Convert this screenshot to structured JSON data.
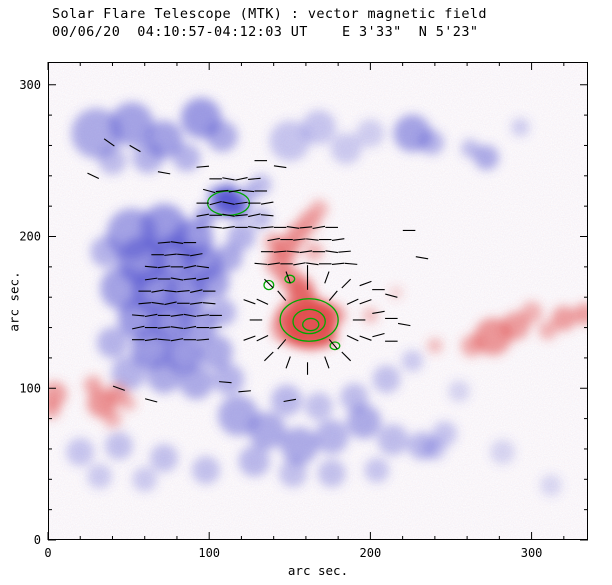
{
  "chart_data": {
    "type": "heatmap",
    "subtype": "solar vector magnetogram with overlaid vector field",
    "title": "Solar Flare Telescope (MTK) : vector magnetic field",
    "subtitle": "00/06/20  04:10:57-04:12:03 UT    E 3'33\"  N 5'23\"",
    "xlabel": "arc sec.",
    "ylabel": "arc sec.",
    "xlim": [
      0,
      335
    ],
    "ylim": [
      0,
      315
    ],
    "xticks": [
      0,
      100,
      200,
      300
    ],
    "yticks": [
      0,
      100,
      200,
      300
    ],
    "minor_tick": 20,
    "grid": false,
    "legend": "none",
    "vector_length": 8,
    "colors": {
      "positive": "#e04848",
      "negative": "#5050cf",
      "contour": "#00a800",
      "vector": "#000000",
      "frame": "#000000",
      "background": "#ffffff"
    },
    "blobs": {
      "negative": [
        [
          30,
          268,
          16,
          0.45
        ],
        [
          52,
          274,
          14,
          0.5
        ],
        [
          72,
          264,
          12,
          0.5
        ],
        [
          95,
          278,
          13,
          0.55
        ],
        [
          108,
          266,
          10,
          0.45
        ],
        [
          62,
          252,
          10,
          0.4
        ],
        [
          40,
          250,
          9,
          0.35
        ],
        [
          86,
          252,
          9,
          0.4
        ],
        [
          150,
          263,
          13,
          0.3
        ],
        [
          168,
          272,
          11,
          0.3
        ],
        [
          185,
          258,
          10,
          0.28
        ],
        [
          200,
          268,
          9,
          0.25
        ],
        [
          226,
          268,
          12,
          0.5
        ],
        [
          238,
          262,
          8,
          0.4
        ],
        [
          272,
          252,
          8,
          0.45
        ],
        [
          262,
          258,
          6,
          0.35
        ],
        [
          293,
          272,
          6,
          0.25
        ],
        [
          52,
          202,
          16,
          0.5
        ],
        [
          72,
          206,
          15,
          0.55
        ],
        [
          90,
          198,
          13,
          0.55
        ],
        [
          58,
          184,
          15,
          0.6
        ],
        [
          78,
          186,
          14,
          0.6
        ],
        [
          96,
          182,
          12,
          0.55
        ],
        [
          46,
          166,
          14,
          0.5
        ],
        [
          66,
          164,
          14,
          0.6
        ],
        [
          86,
          162,
          13,
          0.6
        ],
        [
          102,
          170,
          11,
          0.5
        ],
        [
          56,
          146,
          13,
          0.55
        ],
        [
          76,
          144,
          13,
          0.6
        ],
        [
          94,
          142,
          11,
          0.5
        ],
        [
          64,
          126,
          13,
          0.55
        ],
        [
          84,
          122,
          12,
          0.55
        ],
        [
          104,
          124,
          11,
          0.45
        ],
        [
          50,
          110,
          11,
          0.4
        ],
        [
          72,
          108,
          11,
          0.45
        ],
        [
          92,
          104,
          11,
          0.45
        ],
        [
          112,
          106,
          10,
          0.4
        ],
        [
          40,
          130,
          10,
          0.4
        ],
        [
          36,
          190,
          10,
          0.4
        ],
        [
          108,
          150,
          9,
          0.4
        ],
        [
          112,
          186,
          9,
          0.45
        ],
        [
          120,
          200,
          9,
          0.4
        ],
        [
          112,
          222,
          9,
          0.9
        ],
        [
          119,
          218,
          6,
          0.7
        ],
        [
          105,
          227,
          6,
          0.65
        ],
        [
          112,
          230,
          6,
          0.5
        ],
        [
          124,
          228,
          6,
          0.4
        ],
        [
          132,
          234,
          7,
          0.35
        ],
        [
          98,
          214,
          7,
          0.5
        ],
        [
          132,
          212,
          7,
          0.35
        ],
        [
          118,
          82,
          13,
          0.45
        ],
        [
          136,
          72,
          12,
          0.45
        ],
        [
          156,
          62,
          12,
          0.45
        ],
        [
          176,
          68,
          11,
          0.4
        ],
        [
          196,
          78,
          11,
          0.45
        ],
        [
          214,
          66,
          10,
          0.35
        ],
        [
          232,
          62,
          9,
          0.38
        ],
        [
          148,
          92,
          10,
          0.38
        ],
        [
          168,
          88,
          9,
          0.33
        ],
        [
          190,
          94,
          9,
          0.35
        ],
        [
          128,
          52,
          10,
          0.38
        ],
        [
          152,
          44,
          9,
          0.33
        ],
        [
          176,
          44,
          9,
          0.33
        ],
        [
          204,
          46,
          8,
          0.3
        ],
        [
          246,
          70,
          8,
          0.3
        ],
        [
          210,
          106,
          9,
          0.33
        ],
        [
          226,
          118,
          7,
          0.28
        ],
        [
          240,
          60,
          7,
          0.3
        ],
        [
          20,
          58,
          9,
          0.3
        ],
        [
          44,
          62,
          9,
          0.33
        ],
        [
          72,
          54,
          9,
          0.33
        ],
        [
          98,
          46,
          9,
          0.33
        ],
        [
          32,
          42,
          8,
          0.28
        ],
        [
          60,
          40,
          8,
          0.28
        ],
        [
          282,
          58,
          8,
          0.22
        ],
        [
          312,
          36,
          7,
          0.2
        ],
        [
          255,
          98,
          7,
          0.22
        ]
      ],
      "positive": [
        [
          163,
          142,
          16,
          0.85
        ],
        [
          170,
          149,
          9,
          0.7
        ],
        [
          155,
          136,
          9,
          0.65
        ],
        [
          158,
          158,
          10,
          0.6
        ],
        [
          150,
          148,
          9,
          0.6
        ],
        [
          172,
          135,
          8,
          0.6
        ],
        [
          178,
          148,
          7,
          0.5
        ],
        [
          148,
          140,
          10,
          0.55
        ],
        [
          150,
          172,
          8,
          0.55
        ],
        [
          157,
          166,
          8,
          0.6
        ],
        [
          143,
          182,
          8,
          0.55
        ],
        [
          148,
          192,
          8,
          0.6
        ],
        [
          155,
          202,
          7,
          0.55
        ],
        [
          162,
          210,
          7,
          0.5
        ],
        [
          168,
          218,
          6,
          0.4
        ],
        [
          140,
          196,
          6,
          0.45
        ],
        [
          165,
          190,
          6,
          0.4
        ],
        [
          200,
          148,
          5,
          0.35
        ],
        [
          216,
          163,
          4,
          0.25
        ],
        [
          4,
          96,
          8,
          0.5
        ],
        [
          2,
          86,
          6,
          0.45
        ],
        [
          33,
          90,
          9,
          0.55
        ],
        [
          43,
          96,
          7,
          0.5
        ],
        [
          28,
          102,
          6,
          0.45
        ],
        [
          40,
          80,
          6,
          0.4
        ],
        [
          50,
          90,
          5,
          0.35
        ],
        [
          276,
          134,
          12,
          0.55
        ],
        [
          290,
          141,
          9,
          0.5
        ],
        [
          263,
          128,
          7,
          0.45
        ],
        [
          300,
          150,
          7,
          0.4
        ],
        [
          320,
          146,
          8,
          0.5
        ],
        [
          333,
          149,
          7,
          0.5
        ],
        [
          240,
          128,
          5,
          0.35
        ],
        [
          310,
          138,
          6,
          0.4
        ]
      ]
    },
    "contours": [
      [
        112,
        222,
        13,
        8
      ],
      [
        162,
        145,
        18,
        14
      ],
      [
        162,
        144,
        10,
        8
      ],
      [
        163,
        142,
        5,
        4
      ],
      [
        137,
        168,
        3,
        3
      ],
      [
        150,
        172,
        3,
        2.5
      ],
      [
        178,
        128,
        3,
        2.5
      ]
    ],
    "vectors": [
      [
        96,
        206,
        5
      ],
      [
        104,
        206,
        -5
      ],
      [
        112,
        206,
        8
      ],
      [
        120,
        206,
        0
      ],
      [
        128,
        206,
        -8
      ],
      [
        136,
        206,
        5
      ],
      [
        96,
        214,
        10
      ],
      [
        104,
        214,
        0
      ],
      [
        112,
        214,
        -10
      ],
      [
        120,
        214,
        5
      ],
      [
        128,
        214,
        12
      ],
      [
        136,
        214,
        -5
      ],
      [
        96,
        222,
        0
      ],
      [
        104,
        222,
        15
      ],
      [
        112,
        222,
        -12
      ],
      [
        120,
        222,
        8
      ],
      [
        128,
        222,
        0
      ],
      [
        136,
        222,
        10
      ],
      [
        100,
        230,
        -15
      ],
      [
        108,
        230,
        5
      ],
      [
        116,
        230,
        10
      ],
      [
        124,
        230,
        -5
      ],
      [
        132,
        230,
        0
      ],
      [
        104,
        238,
        0
      ],
      [
        112,
        238,
        -10
      ],
      [
        120,
        238,
        12
      ],
      [
        128,
        238,
        5
      ],
      [
        56,
        132,
        0
      ],
      [
        64,
        132,
        8
      ],
      [
        72,
        132,
        -5
      ],
      [
        80,
        132,
        10
      ],
      [
        88,
        132,
        0
      ],
      [
        96,
        132,
        5
      ],
      [
        56,
        140,
        12
      ],
      [
        64,
        140,
        0
      ],
      [
        72,
        140,
        6
      ],
      [
        80,
        140,
        -8
      ],
      [
        88,
        140,
        10
      ],
      [
        96,
        140,
        0
      ],
      [
        104,
        140,
        5
      ],
      [
        56,
        148,
        -5
      ],
      [
        64,
        148,
        10
      ],
      [
        72,
        148,
        0
      ],
      [
        80,
        148,
        8
      ],
      [
        88,
        148,
        -10
      ],
      [
        96,
        148,
        6
      ],
      [
        104,
        148,
        0
      ],
      [
        60,
        156,
        5
      ],
      [
        68,
        156,
        -8
      ],
      [
        76,
        156,
        12
      ],
      [
        84,
        156,
        0
      ],
      [
        92,
        156,
        8
      ],
      [
        100,
        156,
        -5
      ],
      [
        60,
        164,
        0
      ],
      [
        68,
        164,
        10
      ],
      [
        76,
        164,
        -6
      ],
      [
        84,
        164,
        5
      ],
      [
        92,
        164,
        12
      ],
      [
        100,
        164,
        0
      ],
      [
        64,
        172,
        8
      ],
      [
        72,
        172,
        0
      ],
      [
        80,
        172,
        -10
      ],
      [
        88,
        172,
        6
      ],
      [
        96,
        172,
        10
      ],
      [
        64,
        180,
        -5
      ],
      [
        72,
        180,
        8
      ],
      [
        80,
        180,
        0
      ],
      [
        88,
        180,
        12
      ],
      [
        96,
        180,
        -8
      ],
      [
        68,
        188,
        0
      ],
      [
        76,
        188,
        6
      ],
      [
        84,
        188,
        -5
      ],
      [
        92,
        188,
        10
      ],
      [
        72,
        196,
        5
      ],
      [
        80,
        196,
        -8
      ],
      [
        88,
        196,
        0
      ],
      [
        137,
        121,
        45
      ],
      [
        149,
        117,
        70
      ],
      [
        161,
        113,
        90
      ],
      [
        173,
        117,
        110
      ],
      [
        185,
        121,
        135
      ],
      [
        133,
        133,
        25
      ],
      [
        145,
        129,
        50
      ],
      [
        177,
        129,
        130
      ],
      [
        189,
        133,
        155
      ],
      [
        129,
        145,
        0
      ],
      [
        193,
        145,
        0
      ],
      [
        133,
        157,
        155
      ],
      [
        145,
        161,
        130
      ],
      [
        161,
        169,
        90
      ],
      [
        177,
        161,
        50
      ],
      [
        189,
        157,
        25
      ],
      [
        137,
        169,
        135
      ],
      [
        149,
        173,
        110
      ],
      [
        173,
        173,
        70
      ],
      [
        185,
        169,
        45
      ],
      [
        125,
        133,
        20
      ],
      [
        125,
        157,
        160
      ],
      [
        197,
        133,
        160
      ],
      [
        197,
        157,
        20
      ],
      [
        161,
        177,
        90
      ],
      [
        132,
        182,
        -5
      ],
      [
        140,
        182,
        8
      ],
      [
        148,
        182,
        0
      ],
      [
        156,
        182,
        10
      ],
      [
        164,
        182,
        -8
      ],
      [
        172,
        182,
        0
      ],
      [
        180,
        182,
        6
      ],
      [
        188,
        182,
        -5
      ],
      [
        136,
        190,
        0
      ],
      [
        144,
        190,
        5
      ],
      [
        152,
        190,
        -5
      ],
      [
        160,
        190,
        8
      ],
      [
        168,
        190,
        0
      ],
      [
        176,
        190,
        -8
      ],
      [
        184,
        190,
        5
      ],
      [
        140,
        198,
        10
      ],
      [
        148,
        198,
        0
      ],
      [
        156,
        198,
        6
      ],
      [
        164,
        198,
        -6
      ],
      [
        172,
        198,
        0
      ],
      [
        180,
        198,
        8
      ],
      [
        144,
        206,
        0
      ],
      [
        152,
        206,
        -8
      ],
      [
        160,
        206,
        5
      ],
      [
        168,
        206,
        10
      ],
      [
        176,
        206,
        0
      ],
      [
        197,
        169,
        20
      ],
      [
        205,
        165,
        0
      ],
      [
        213,
        161,
        -15
      ],
      [
        205,
        150,
        10
      ],
      [
        213,
        146,
        0
      ],
      [
        221,
        142,
        -10
      ],
      [
        205,
        135,
        15
      ],
      [
        213,
        131,
        0
      ],
      [
        38,
        262,
        -35
      ],
      [
        54,
        258,
        -30
      ],
      [
        28,
        240,
        -25
      ],
      [
        72,
        242,
        -10
      ],
      [
        96,
        246,
        5
      ],
      [
        132,
        250,
        0
      ],
      [
        144,
        246,
        -8
      ],
      [
        44,
        100,
        -20
      ],
      [
        64,
        92,
        -15
      ],
      [
        110,
        104,
        -5
      ],
      [
        122,
        98,
        5
      ],
      [
        224,
        204,
        0
      ],
      [
        232,
        186,
        -10
      ],
      [
        150,
        92,
        10
      ]
    ]
  }
}
